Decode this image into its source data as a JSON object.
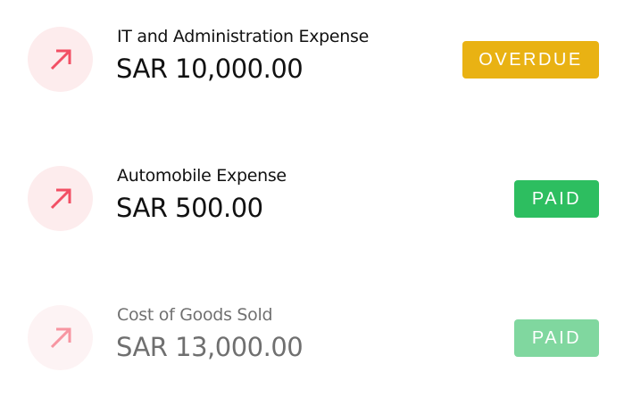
{
  "items": [
    {
      "title": "IT and Administration Expense",
      "amount": "SAR 10,000.00",
      "status": "OVERDUE",
      "status_color": "#e9b213",
      "icon": "arrow-up-right-icon"
    },
    {
      "title": "Automobile Expense",
      "amount": "SAR 500.00",
      "status": "PAID",
      "status_color": "#2dbe60",
      "icon": "arrow-up-right-icon"
    },
    {
      "title": "Cost of Goods Sold",
      "amount": "SAR 13,000.00",
      "status": "PAID",
      "status_color": "#2dbe60",
      "icon": "arrow-up-right-icon"
    }
  ],
  "colors": {
    "icon_bg": "#fdeced",
    "icon_arrow": "#f24f64"
  }
}
